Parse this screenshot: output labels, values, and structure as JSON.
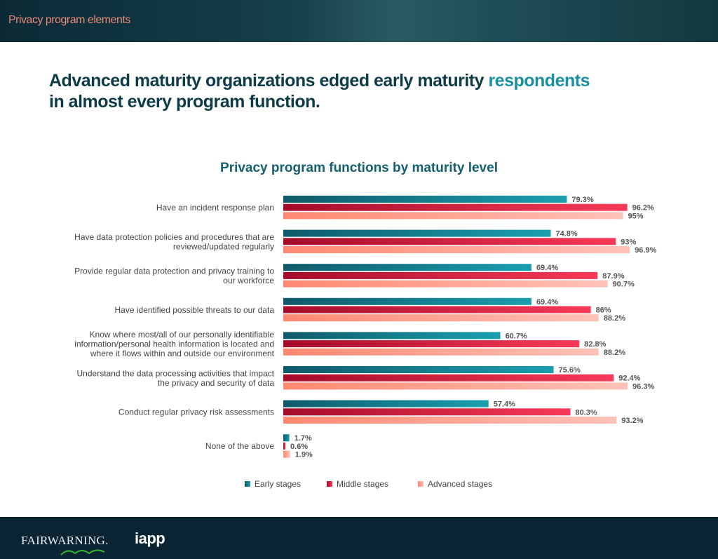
{
  "header": {
    "section": "Privacy program elements"
  },
  "headline": {
    "part1": "Advanced maturity organizations edged early maturity",
    "part2": " respondents",
    "line2": "in almost every program function."
  },
  "chart_data": {
    "type": "bar",
    "orientation": "horizontal",
    "title": "Privacy program functions by maturity level",
    "categories": [
      [
        "Have an incident response plan"
      ],
      [
        "Have data protection policies and procedures that are",
        "reviewed/updated regularly"
      ],
      [
        "Provide regular data protection and privacy training to",
        "our workforce"
      ],
      [
        "Have identified possible threats to our data"
      ],
      [
        "Know where most/all of our personally identifiable",
        "information/personal health information is located and",
        "where it flows within and outside our environment"
      ],
      [
        "Understand the data processing activities that impact",
        "the privacy and security of data"
      ],
      [
        "Conduct regular privacy risk assessments"
      ],
      [
        "None of the above"
      ]
    ],
    "series": [
      {
        "name": "Early stages",
        "color": "#1a9fb0",
        "color_dark": "#0f5a6a",
        "values": [
          79.3,
          74.8,
          69.4,
          69.4,
          60.7,
          75.6,
          57.4,
          1.7
        ],
        "labels": [
          "79.3%",
          "74.8%",
          "69.4%",
          "69.4%",
          "60.7%",
          "75.6%",
          "57.4%",
          "1.7%"
        ]
      },
      {
        "name": "Middle stages",
        "color": "#f83a58",
        "color_dark": "#a50c2a",
        "values": [
          96.2,
          93,
          87.9,
          86,
          82.8,
          92.4,
          80.3,
          0.6
        ],
        "labels": [
          "96.2%",
          "93%",
          "87.9%",
          "86%",
          "82.8%",
          "92.4%",
          "80.3%",
          "0.6%"
        ]
      },
      {
        "name": "Advanced stages",
        "color": "#ffc2b8",
        "color_dark": "#ff8870",
        "values": [
          95,
          96.9,
          90.7,
          88.2,
          88.2,
          96.3,
          93.2,
          1.9
        ],
        "labels": [
          "95%",
          "96.9%",
          "90.7%",
          "88.2%",
          "88.2%",
          "96.3%",
          "93.2%",
          "1.9%"
        ]
      }
    ],
    "xlim": [
      0,
      100
    ],
    "grid": false,
    "legend": "bottom"
  },
  "footer": {
    "logo1": "FairWarning.",
    "logo2": "iapp"
  }
}
